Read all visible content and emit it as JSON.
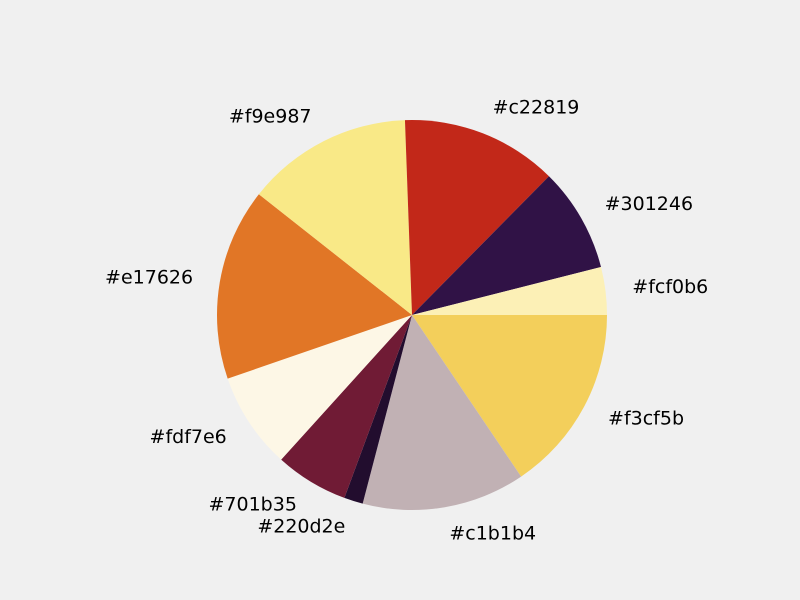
{
  "chart_data": {
    "type": "pie",
    "title": "",
    "slices": [
      {
        "label": "#f3cf5b",
        "value": 16.9,
        "color": "#f3cf5b"
      },
      {
        "label": "#c1b1b4",
        "value": 14.7,
        "color": "#c1b1b4"
      },
      {
        "label": "#220d2e",
        "value": 1.7,
        "color": "#220d2e"
      },
      {
        "label": "#701b35",
        "value": 6.6,
        "color": "#701b35"
      },
      {
        "label": "#fdf7e6",
        "value": 8.7,
        "color": "#fdf7e6"
      },
      {
        "label": "#e17626",
        "value": 17.3,
        "color": "#e17626"
      },
      {
        "label": "#f9e987",
        "value": 15.0,
        "color": "#f9e987"
      },
      {
        "label": "#c22819",
        "value": 14.1,
        "color": "#c22819"
      },
      {
        "label": "#301246",
        "value": 9.4,
        "color": "#301246"
      },
      {
        "label": "#fcf0b6",
        "value": 4.3,
        "color": "#fcf0b6"
      }
    ],
    "start_angle_deg": 0,
    "direction": "clockwise",
    "legend": "none"
  }
}
